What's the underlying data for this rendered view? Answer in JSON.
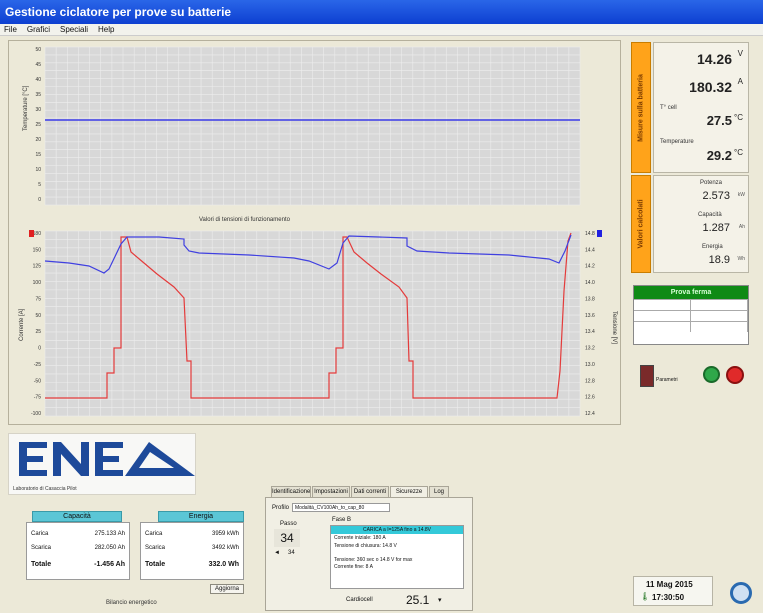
{
  "window": {
    "title": "Gestione ciclatore per prove su batterie"
  },
  "menu": [
    "File",
    "Grafici",
    "Speciali",
    "Help"
  ],
  "top_chart": {
    "xlabel": "Valori di tensioni di funzionamento",
    "ylabel": "Temperature [°C]",
    "yticks": [
      "50",
      "45",
      "40",
      "35",
      "30",
      "25",
      "20",
      "15",
      "10",
      "5",
      "0"
    ]
  },
  "bottom_chart": {
    "left_ticks": [
      "180",
      "150",
      "125",
      "100",
      "75",
      "50",
      "25",
      "0",
      "-25",
      "-50",
      "-75",
      "-100"
    ],
    "right_ticks": [
      "14.8",
      "14.4",
      "14.2",
      "14.0",
      "13.8",
      "13.6",
      "13.4",
      "13.2",
      "13.0",
      "12.8",
      "12.6",
      "12.4"
    ],
    "left_label": "Corrente [A]",
    "right_label": "Tensione [V]"
  },
  "measures": {
    "side_label_top": "Misure sulla batteria",
    "voltage": "14.26",
    "voltage_unit": "V",
    "current": "180.32",
    "current_unit": "A",
    "temp1_label": "T° cell",
    "temp1": "27.5",
    "temp1_unit": "°C",
    "temp2_label": "Temperature",
    "temp2": "29.2",
    "temp2_unit": "°C",
    "side_label_bottom": "Valori calcolati",
    "power_label": "Potenza",
    "power": "2.573",
    "power_unit": "kW",
    "capacity_label": "Capacità",
    "capacity": "1.287",
    "capacity_unit": "Ah",
    "energy_label": "Energia",
    "energy": "18.9",
    "energy_unit": "Wh"
  },
  "state_table": {
    "header": "Prova ferma"
  },
  "controls": {
    "open_label": "Parametri"
  },
  "logo": {
    "text": "ENEA",
    "subtitle": "Laboratorio di Casaccia Pilot"
  },
  "capacita": {
    "header": "Capacità",
    "rows": [
      [
        "Carica",
        "275.133 Ah"
      ],
      [
        "Scarica",
        "282.050 Ah"
      ]
    ],
    "total_label": "Totale",
    "total": "-1.456 Ah"
  },
  "energia": {
    "header": "Energia",
    "rows": [
      [
        "Carica",
        "3959 kWh"
      ],
      [
        "Scarica",
        "3492 kWh"
      ]
    ],
    "total_label": "Totale",
    "total": "332.0 Wh"
  },
  "aggiorna": "Aggiorna",
  "footer_label": "Bilancio energetico",
  "tabs": [
    "Identificazione",
    "Impostazioni",
    "Dati correnti",
    "Sicurezze",
    "Log"
  ],
  "tabcontent": {
    "profile_label": "Profilo",
    "profile_value": "Modalità_CV100Ah_to_cap_80",
    "step_label": "Passo",
    "step": "34",
    "step_total": "34",
    "phase_label": "Fase B",
    "highlight": "CARICA a I=125A fino a 14.8V",
    "lines": [
      "Corrente iniziale: 180 A",
      "Tensione di chiusura: 14.8 V",
      "",
      "Tensione: 360 sec o 14.8 V for max",
      "Corrente fine: 8 A"
    ],
    "temp_label": "Cardiocell",
    "temp_value": "25.1"
  },
  "datetime": {
    "date": "11 Mag 2015",
    "time": "17:30:50"
  }
}
